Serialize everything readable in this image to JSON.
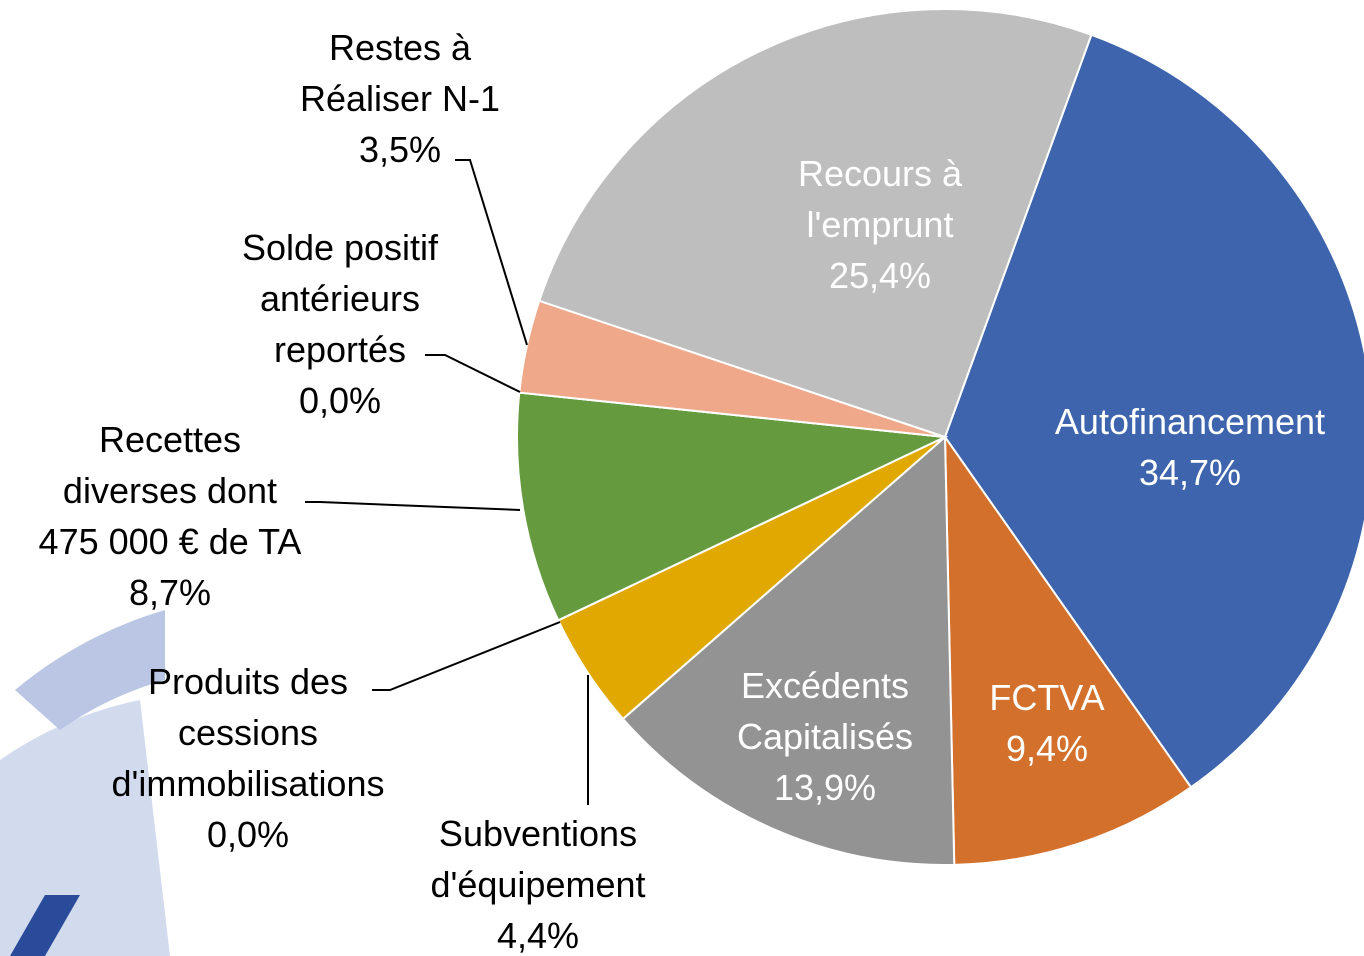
{
  "chart_data": {
    "type": "pie",
    "categories": [
      "Autofinancement",
      "FCTVA",
      "Excédents\nCapitalisés",
      "Subventions\nd'équipement",
      "Produits des\ncessions\nd'immobilisations",
      "Recettes\ndiverses dont\n475 000 € de TA",
      "Solde positif\nantérieurs\nreportés",
      "Restes à\nRéaliser N-1",
      "Recours à\nl'emprunt"
    ],
    "values": [
      34.7,
      9.4,
      13.9,
      4.4,
      0.0,
      8.7,
      0.0,
      3.5,
      25.4
    ],
    "value_labels": [
      "34,7%",
      "9,4%",
      "13,9%",
      "4,4%",
      "0,0%",
      "8,7%",
      "0,0%",
      "3,5%",
      "25,4%"
    ],
    "colors": [
      "#3d64ad",
      "#d2702c",
      "#939393",
      "#e0a800",
      "#4a7bc4",
      "#659b3e",
      "#a5a5a5",
      "#f0a88a",
      "#bebebe"
    ]
  }
}
